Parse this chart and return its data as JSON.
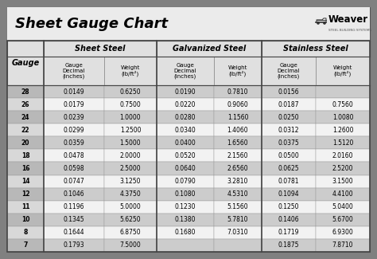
{
  "title": "Sheet Gauge Chart",
  "bg_outer": "#808080",
  "bg_inner": "#ffffff",
  "bg_header_sec": "#e0e0e0",
  "bg_row_dark": "#cccccc",
  "bg_row_light": "#f2f2f2",
  "section_headers": [
    "Sheet Steel",
    "Galvanized Steel",
    "Stainless Steel"
  ],
  "gauges": [
    28,
    26,
    24,
    22,
    20,
    18,
    16,
    14,
    12,
    11,
    10,
    8,
    7
  ],
  "sheet_steel_decimal": [
    "0.0149",
    "0.0179",
    "0.0239",
    "0.0299",
    "0.0359",
    "0.0478",
    "0.0598",
    "0.0747",
    "0.1046",
    "0.1196",
    "0.1345",
    "0.1644",
    "0.1793"
  ],
  "sheet_steel_weight": [
    "0.6250",
    "0.7500",
    "1.0000",
    "1.2500",
    "1.5000",
    "2.0000",
    "2.5000",
    "3.1250",
    "4.3750",
    "5.0000",
    "5.6250",
    "6.8750",
    "7.5000"
  ],
  "galv_decimal": [
    "0.0190",
    "0.0220",
    "0.0280",
    "0.0340",
    "0.0400",
    "0.0520",
    "0.0640",
    "0.0790",
    "0.1080",
    "0.1230",
    "0.1380",
    "0.1680",
    ""
  ],
  "galv_weight": [
    "0.7810",
    "0.9060",
    "1.1560",
    "1.4060",
    "1.6560",
    "2.1560",
    "2.6560",
    "3.2810",
    "4.5310",
    "5.1560",
    "5.7810",
    "7.0310",
    ""
  ],
  "ss_decimal": [
    "0.0156",
    "0.0187",
    "0.0250",
    "0.0312",
    "0.0375",
    "0.0500",
    "0.0625",
    "0.0781",
    "0.1094",
    "0.1250",
    "0.1406",
    "0.1719",
    "0.1875"
  ],
  "ss_weight": [
    "",
    "0.7560",
    "1.0080",
    "1.2600",
    "1.5120",
    "2.0160",
    "2.5200",
    "3.1500",
    "4.4100",
    "5.0400",
    "5.6700",
    "6.9300",
    "7.8710"
  ]
}
